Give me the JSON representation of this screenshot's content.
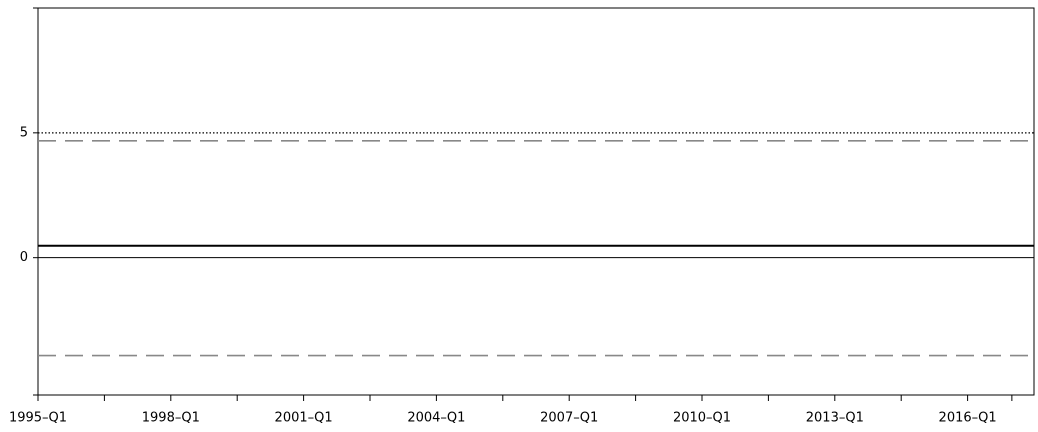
{
  "chart_data": {
    "type": "line",
    "xlim": [
      1995,
      2017.5
    ],
    "xticks": [
      {
        "value": 1995,
        "label": "1995–Q1"
      },
      {
        "value": 1998,
        "label": "1998–Q1"
      },
      {
        "value": 2001,
        "label": "2001–Q1"
      },
      {
        "value": 2004,
        "label": "2004–Q1"
      },
      {
        "value": 2007,
        "label": "2007–Q1"
      },
      {
        "value": 2010,
        "label": "2010–Q1"
      },
      {
        "value": 2013,
        "label": "2013–Q1"
      },
      {
        "value": 2016,
        "label": "2016–Q1"
      }
    ],
    "xminor_ticks": [
      1996.5,
      1999.5,
      2002.5,
      2005.5,
      2008.5,
      2011.5,
      2014.5,
      2017
    ],
    "ylim": [
      -5.5,
      10
    ],
    "yticks": [
      0,
      5
    ],
    "zero_line": true,
    "series": [
      {
        "color": "#000000",
        "style": "dotted",
        "x": [
          1995,
          2017.5
        ],
        "values": [
          5,
          5
        ]
      },
      {
        "color": "#888888",
        "style": "dashed",
        "x": [
          1995,
          2017.5
        ],
        "values": [
          4.68,
          4.68
        ]
      },
      {
        "color": "#000000",
        "style": "solid",
        "x": [
          1995,
          2017.5
        ],
        "values": [
          0.48,
          0.48
        ]
      },
      {
        "color": "#888888",
        "style": "dashed",
        "x": [
          1995,
          2017.5
        ],
        "values": [
          -3.92,
          -3.92
        ]
      }
    ]
  }
}
